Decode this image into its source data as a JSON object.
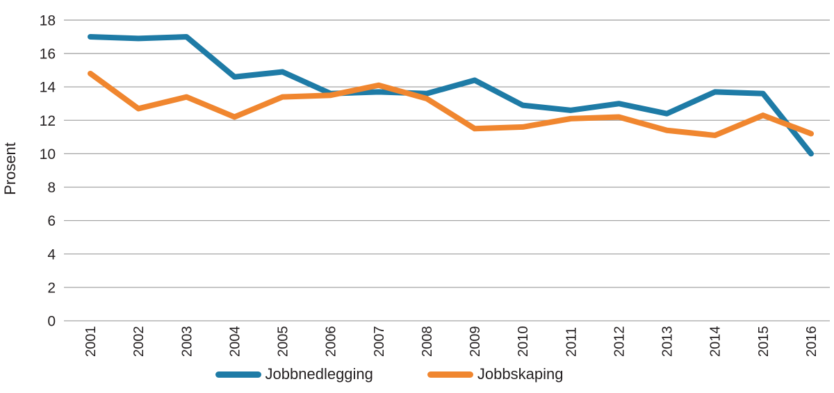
{
  "chart_data": {
    "type": "line",
    "title": "",
    "xlabel": "",
    "ylabel": "Prosent",
    "ylim": [
      0,
      18
    ],
    "ytick_step": 2,
    "grid": true,
    "legend_position": "bottom",
    "x": [
      "2001",
      "2002",
      "2003",
      "2004",
      "2005",
      "2006",
      "2007",
      "2008",
      "2009",
      "2010",
      "2011",
      "2012",
      "2013",
      "2014",
      "2015",
      "2016"
    ],
    "series": [
      {
        "name": "Jobbnedlegging",
        "color": "#1E7BA6",
        "values": [
          17.0,
          16.9,
          17.0,
          14.6,
          14.9,
          13.6,
          13.7,
          13.6,
          14.4,
          12.9,
          12.6,
          13.0,
          12.4,
          13.7,
          13.6,
          10.0
        ]
      },
      {
        "name": "Jobbskaping",
        "color": "#F0862F",
        "values": [
          14.8,
          12.7,
          13.4,
          12.2,
          13.4,
          13.5,
          14.1,
          13.3,
          11.5,
          11.6,
          12.1,
          12.2,
          11.4,
          11.1,
          12.3,
          11.2
        ]
      }
    ],
    "colors": {
      "gridline": "#A5A5A5",
      "text": "#231F20"
    }
  }
}
